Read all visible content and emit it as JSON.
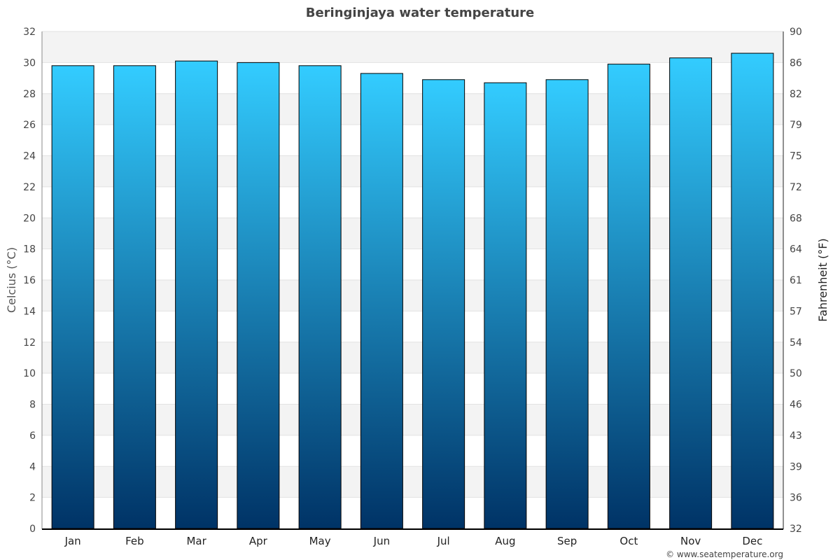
{
  "chart_data": {
    "type": "bar",
    "title": "Beringinjaya water temperature",
    "categories": [
      "Jan",
      "Feb",
      "Mar",
      "Apr",
      "May",
      "Jun",
      "Jul",
      "Aug",
      "Sep",
      "Oct",
      "Nov",
      "Dec"
    ],
    "values": [
      29.8,
      29.8,
      30.1,
      30.0,
      29.8,
      29.3,
      28.9,
      28.7,
      28.9,
      29.9,
      30.3,
      30.6
    ],
    "ylabel": "Celcius (°C)",
    "y2label": "Fahrenheit (°F)",
    "ylim": [
      0,
      32
    ],
    "yticks": [
      0,
      2,
      4,
      6,
      8,
      10,
      12,
      14,
      16,
      18,
      20,
      22,
      24,
      26,
      28,
      30,
      32
    ],
    "y2ticks": [
      "32",
      "36",
      "39",
      "43",
      "46",
      "50",
      "54",
      "57",
      "61",
      "64",
      "68",
      "72",
      "75",
      "79",
      "82",
      "86",
      "90"
    ],
    "grid": true,
    "colors": {
      "bar_top": "#33ccff",
      "bar_bottom": "#003366",
      "band": "#f3f3f3"
    }
  },
  "credit": "© www.seatemperature.org"
}
